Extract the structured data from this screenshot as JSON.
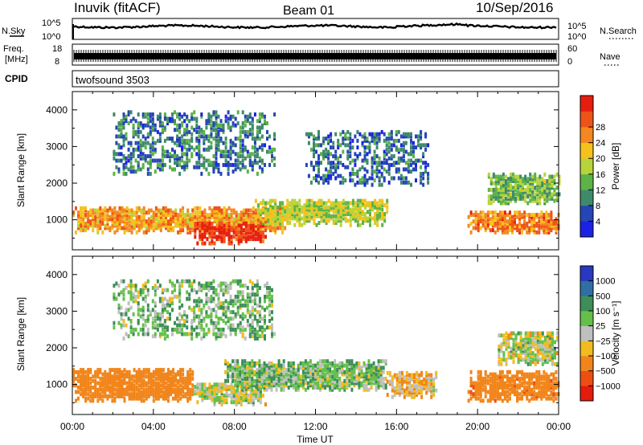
{
  "header": {
    "station": "Inuvik (fitACF)",
    "beam": "Beam 01",
    "date": "10/Sep/2016"
  },
  "top_panels": {
    "nsky_label": "N.Sky",
    "nsky_ticks": [
      "10^5",
      "10^0"
    ],
    "nsearch_label": "N.Search",
    "nsearch_ticks": [
      "10^5",
      "10^0"
    ],
    "freq_label_1": "Freq.",
    "freq_label_2": "[MHz]",
    "freq_ticks": [
      "18",
      "8"
    ],
    "nave_label": "Nave",
    "nave_ticks": [
      "60",
      "0"
    ],
    "cpid_label": "CPID",
    "cpid_value": "twofsound 3503"
  },
  "axes": {
    "x_ticks": [
      "00:00",
      "04:00",
      "08:00",
      "12:00",
      "16:00",
      "20:00",
      "00:00"
    ],
    "x_label": "Time UT",
    "y_label": "Slant Range [km]",
    "y_ticks": [
      "1000",
      "2000",
      "3000",
      "4000"
    ]
  },
  "colorbars": {
    "power": {
      "label": "Power [dB]",
      "ticks": [
        "4",
        "8",
        "12",
        "16",
        "20",
        "24",
        "28"
      ],
      "colors": [
        "#1b22e6",
        "#2546b4",
        "#3f8a6a",
        "#5cb347",
        "#b7d43a",
        "#f5c21c",
        "#f4871f",
        "#ee5418",
        "#e61e10"
      ]
    },
    "velocity": {
      "label": "Velocity [m s⁻¹]",
      "ticks": [
        "1000",
        "500",
        "100",
        "25",
        "−25",
        "−100",
        "−500",
        "−1000"
      ],
      "colors": [
        "#2838c0",
        "#2f6fa4",
        "#3d8e58",
        "#64c04a",
        "#bfbfbf",
        "#f2bc1e",
        "#f1851b",
        "#ec4f12",
        "#e51b0e"
      ]
    }
  },
  "chart_data": [
    {
      "type": "heatmap",
      "title": "Power",
      "xlabel": "Time UT",
      "ylabel": "Slant Range [km]",
      "x_range": [
        "00:00",
        "24:00"
      ],
      "y_range_km": [
        180,
        4500
      ],
      "colorbar_range_dB": [
        0,
        32
      ],
      "regions": [
        {
          "t0": 0.0,
          "t1": 10.5,
          "r0": 600,
          "r1": 1300,
          "v": 22
        },
        {
          "t0": 6.0,
          "t1": 9.5,
          "r0": 300,
          "r1": 900,
          "v": 29
        },
        {
          "t0": 9.0,
          "t1": 15.5,
          "r0": 800,
          "r1": 1500,
          "v": 16
        },
        {
          "t0": 19.5,
          "t1": 24.0,
          "r0": 600,
          "r1": 1200,
          "v": 24
        },
        {
          "t0": 20.5,
          "t1": 24.0,
          "r0": 1400,
          "r1": 2200,
          "v": 13
        },
        {
          "t0": 2.0,
          "t1": 10.0,
          "r0": 2200,
          "r1": 3900,
          "v": 8
        },
        {
          "t0": 11.5,
          "t1": 17.5,
          "r0": 1900,
          "r1": 3400,
          "v": 7
        }
      ]
    },
    {
      "type": "heatmap",
      "title": "Velocity",
      "xlabel": "Time UT",
      "ylabel": "Slant Range [km]",
      "x_range": [
        "00:00",
        "24:00"
      ],
      "y_range_km": [
        180,
        4500
      ],
      "colorbar_range_m_s": [
        -1000,
        1000
      ],
      "regions": [
        {
          "t0": 0.0,
          "t1": 6.0,
          "r0": 500,
          "r1": 1400,
          "v": -250
        },
        {
          "t0": 6.0,
          "t1": 9.5,
          "r0": 400,
          "r1": 1000,
          "v": 0
        },
        {
          "t0": 7.5,
          "t1": 15.5,
          "r0": 800,
          "r1": 1600,
          "v": 60
        },
        {
          "t0": 15.5,
          "t1": 18.0,
          "r0": 600,
          "r1": 1300,
          "v": -80
        },
        {
          "t0": 19.5,
          "t1": 24.0,
          "r0": 500,
          "r1": 1300,
          "v": -400
        },
        {
          "t0": 21.0,
          "t1": 24.0,
          "r0": 1500,
          "r1": 2400,
          "v": 0
        },
        {
          "t0": 2.0,
          "t1": 10.0,
          "r0": 2200,
          "r1": 3800,
          "v": 70
        }
      ]
    }
  ]
}
